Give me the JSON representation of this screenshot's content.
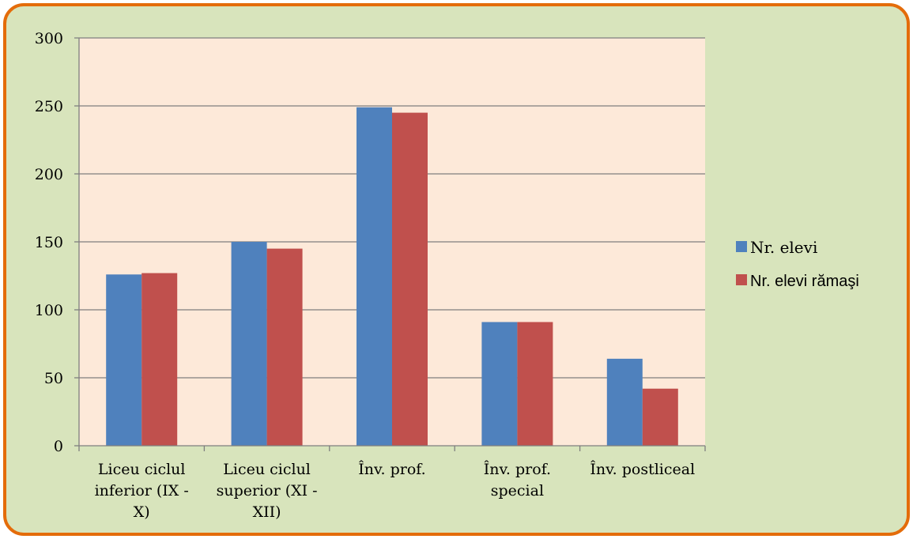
{
  "chart_data": {
    "type": "bar",
    "categories": [
      [
        "Liceu ciclul",
        "inferior (IX -",
        "X)"
      ],
      [
        "Liceu ciclul",
        "superior (XI -",
        "XII)"
      ],
      [
        "Înv. prof."
      ],
      [
        "Înv. prof.",
        "special"
      ],
      [
        "Înv. postliceal"
      ]
    ],
    "series": [
      {
        "name": "Nr. elevi",
        "values": [
          126,
          150,
          249,
          91,
          64
        ],
        "color": "#4f81bd"
      },
      {
        "name": "Nr. elevi rămaşi",
        "values": [
          127,
          145,
          245,
          91,
          42
        ],
        "color": "#c0504d"
      }
    ],
    "yticks": [
      "0",
      "50",
      "100",
      "150",
      "200",
      "250",
      "300"
    ],
    "ylim": [
      0,
      300
    ],
    "grid": true,
    "legend": "right",
    "plot_background": "#fde9d9",
    "chart_background": "#d8e4bc",
    "border_color": "#e46c0a"
  }
}
